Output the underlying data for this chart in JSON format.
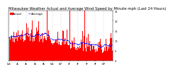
{
  "title": "Milwaukee Weather Actual and Average Wind Speed by Minute mph (Last 24 Hours)",
  "title_fontsize": 3.8,
  "background_color": "#ffffff",
  "plot_bg_color": "#ffffff",
  "bar_color": "#ff0000",
  "line_color": "#0000ff",
  "grid_color": "#aaaaaa",
  "ylim": [
    0,
    25
  ],
  "yticks": [
    0,
    5,
    10,
    15,
    20,
    25
  ],
  "n_points": 1440,
  "seed": 42,
  "legend_actual": "Actual",
  "legend_avg": "Average",
  "legend_fontsize": 3.0
}
